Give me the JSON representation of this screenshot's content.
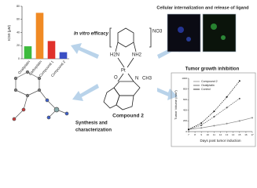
{
  "in_vitro": {
    "type": "bar",
    "title": "In vitro efficacy",
    "ylabel": "IC50 (μM)",
    "categories": [
      "Oxaliplatin",
      "Carboplatin",
      "Compound 1",
      "Compound 2"
    ],
    "values": [
      19,
      70,
      27,
      10
    ],
    "colors": [
      "#3dbb3d",
      "#f08a24",
      "#e0312b",
      "#3b4fc4"
    ],
    "ylim": [
      0,
      80
    ],
    "yticks": [
      0,
      20,
      40,
      60,
      80
    ]
  },
  "structure": {
    "counter_ion": "NO3",
    "amine_left": "H2N",
    "amine_right": "NH2",
    "metal": "Pt",
    "oxygen": "O",
    "nitrogen": "N",
    "methyl": "CH3",
    "name": "Compound 2"
  },
  "imaging": {
    "title": "Cellular internalization and release of ligand"
  },
  "synthesis": {
    "lines": [
      "Synthesis and",
      "characterization"
    ]
  },
  "tumor": {
    "type": "line",
    "title": "Tumor growth inhibition",
    "xlabel": "Days post tumor induction",
    "ylabel": "Tumor Volume (mm³)",
    "x": [
      7,
      9,
      11,
      13,
      15,
      17
    ],
    "series": [
      {
        "name": "Compound 2",
        "color": "#8a8a8a",
        "values": [
          40,
          70,
          110,
          150,
          200,
          260
        ]
      },
      {
        "name": "Oxaliplatin",
        "color": "#555555",
        "values": [
          40,
          120,
          280,
          450,
          620,
          null
        ]
      },
      {
        "name": "Control",
        "color": "#111111",
        "values": [
          40,
          160,
          380,
          650,
          950,
          null
        ]
      }
    ],
    "xlim": [
      7,
      17
    ],
    "xticks": [
      7,
      8,
      9,
      10,
      11,
      12,
      13,
      14,
      15,
      16,
      17
    ],
    "ylim": [
      0,
      1000
    ],
    "yticks": [
      0,
      200,
      400,
      600,
      800,
      1000
    ]
  }
}
